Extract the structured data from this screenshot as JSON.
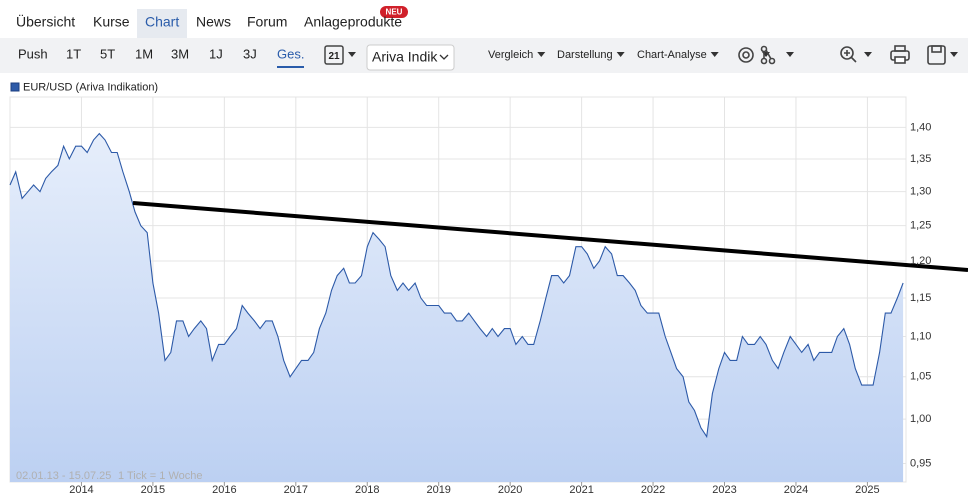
{
  "nav": {
    "tabs": [
      "Übersicht",
      "Kurse",
      "Chart",
      "News",
      "Forum",
      "Anlageprodukte"
    ],
    "badge": "NEU"
  },
  "toolbar": {
    "ranges": [
      "Push",
      "1T",
      "5T",
      "1M",
      "3M",
      "1J",
      "3J",
      "Ges."
    ],
    "calendar_day": "21",
    "source": "Ariva Indik",
    "menus": [
      "Vergleich",
      "Darstellung",
      "Chart-Analyse"
    ]
  },
  "chart_data": {
    "type": "line",
    "series": [
      {
        "name": "EUR/USD (Ariva Indikation)",
        "color": "#2d5aa8",
        "values": [
          1.31,
          1.33,
          1.29,
          1.3,
          1.31,
          1.3,
          1.32,
          1.33,
          1.34,
          1.37,
          1.35,
          1.37,
          1.37,
          1.36,
          1.38,
          1.39,
          1.38,
          1.36,
          1.36,
          1.33,
          1.3,
          1.27,
          1.25,
          1.24,
          1.17,
          1.13,
          1.07,
          1.08,
          1.12,
          1.12,
          1.1,
          1.11,
          1.12,
          1.11,
          1.07,
          1.09,
          1.09,
          1.1,
          1.11,
          1.14,
          1.13,
          1.12,
          1.11,
          1.12,
          1.12,
          1.1,
          1.07,
          1.05,
          1.06,
          1.07,
          1.07,
          1.08,
          1.11,
          1.13,
          1.16,
          1.18,
          1.19,
          1.17,
          1.17,
          1.18,
          1.22,
          1.24,
          1.23,
          1.22,
          1.18,
          1.16,
          1.17,
          1.16,
          1.17,
          1.15,
          1.14,
          1.14,
          1.14,
          1.13,
          1.13,
          1.12,
          1.12,
          1.13,
          1.12,
          1.11,
          1.1,
          1.11,
          1.1,
          1.11,
          1.11,
          1.09,
          1.1,
          1.09,
          1.09,
          1.12,
          1.15,
          1.18,
          1.18,
          1.17,
          1.18,
          1.22,
          1.22,
          1.21,
          1.19,
          1.2,
          1.22,
          1.21,
          1.18,
          1.18,
          1.17,
          1.16,
          1.14,
          1.13,
          1.13,
          1.13,
          1.1,
          1.08,
          1.06,
          1.05,
          1.02,
          1.01,
          0.99,
          0.98,
          1.03,
          1.06,
          1.08,
          1.07,
          1.07,
          1.1,
          1.09,
          1.09,
          1.1,
          1.09,
          1.07,
          1.06,
          1.08,
          1.1,
          1.09,
          1.08,
          1.09,
          1.07,
          1.08,
          1.08,
          1.08,
          1.1,
          1.11,
          1.09,
          1.06,
          1.04,
          1.04,
          1.04,
          1.08,
          1.13,
          1.13,
          1.15,
          1.17
        ]
      }
    ],
    "x": [
      2013.0,
      2013.08,
      2013.17,
      2013.25,
      2013.33,
      2013.42,
      2013.5,
      2013.58,
      2013.67,
      2013.75,
      2013.83,
      2013.92,
      2014.0,
      2014.08,
      2014.17,
      2014.25,
      2014.33,
      2014.42,
      2014.5,
      2014.58,
      2014.67,
      2014.75,
      2014.83,
      2014.92,
      2015.0,
      2015.08,
      2015.17,
      2015.25,
      2015.33,
      2015.42,
      2015.5,
      2015.58,
      2015.67,
      2015.75,
      2015.83,
      2015.92,
      2016.0,
      2016.08,
      2016.17,
      2016.25,
      2016.33,
      2016.42,
      2016.5,
      2016.58,
      2016.67,
      2016.75,
      2016.83,
      2016.92,
      2017.0,
      2017.08,
      2017.17,
      2017.25,
      2017.33,
      2017.42,
      2017.5,
      2017.58,
      2017.67,
      2017.75,
      2017.83,
      2017.92,
      2018.0,
      2018.08,
      2018.17,
      2018.25,
      2018.33,
      2018.42,
      2018.5,
      2018.58,
      2018.67,
      2018.75,
      2018.83,
      2018.92,
      2019.0,
      2019.08,
      2019.17,
      2019.25,
      2019.33,
      2019.42,
      2019.5,
      2019.58,
      2019.67,
      2019.75,
      2019.83,
      2019.92,
      2020.0,
      2020.08,
      2020.17,
      2020.25,
      2020.33,
      2020.42,
      2020.5,
      2020.58,
      2020.67,
      2020.75,
      2020.83,
      2020.92,
      2021.0,
      2021.08,
      2021.17,
      2021.25,
      2021.33,
      2021.42,
      2021.5,
      2021.58,
      2021.67,
      2021.75,
      2021.83,
      2021.92,
      2022.0,
      2022.08,
      2022.17,
      2022.25,
      2022.33,
      2022.42,
      2022.5,
      2022.58,
      2022.67,
      2022.75,
      2022.83,
      2022.92,
      2023.0,
      2023.08,
      2023.17,
      2023.25,
      2023.33,
      2023.42,
      2023.5,
      2023.58,
      2023.67,
      2023.75,
      2023.83,
      2023.92,
      2024.0,
      2024.08,
      2024.17,
      2024.25,
      2024.33,
      2024.42,
      2024.5,
      2024.58,
      2024.67,
      2024.75,
      2024.83,
      2024.92,
      2025.0,
      2025.08,
      2025.17,
      2025.25,
      2025.33,
      2025.42,
      2025.5
    ],
    "xlim": [
      2013.0,
      2025.54
    ],
    "xticks": [
      2014,
      2015,
      2016,
      2017,
      2018,
      2019,
      2020,
      2021,
      2022,
      2023,
      2024,
      2025
    ],
    "ylim": [
      0.93,
      1.45
    ],
    "yscale": "log",
    "yticks": [
      {
        "value": 0.95,
        "label": "0,95"
      },
      {
        "value": 1.0,
        "label": "1,00"
      },
      {
        "value": 1.05,
        "label": "1,05"
      },
      {
        "value": 1.1,
        "label": "1,10"
      },
      {
        "value": 1.15,
        "label": "1,15"
      },
      {
        "value": 1.2,
        "label": "1,20"
      },
      {
        "value": 1.25,
        "label": "1,25"
      },
      {
        "value": 1.3,
        "label": "1,30"
      },
      {
        "value": 1.35,
        "label": "1,35"
      },
      {
        "value": 1.4,
        "label": "1,40"
      }
    ],
    "grid": true,
    "footer_range": "02.01.13 - 15.07.25",
    "footer_note": "1 Tick = 1 Woche"
  }
}
